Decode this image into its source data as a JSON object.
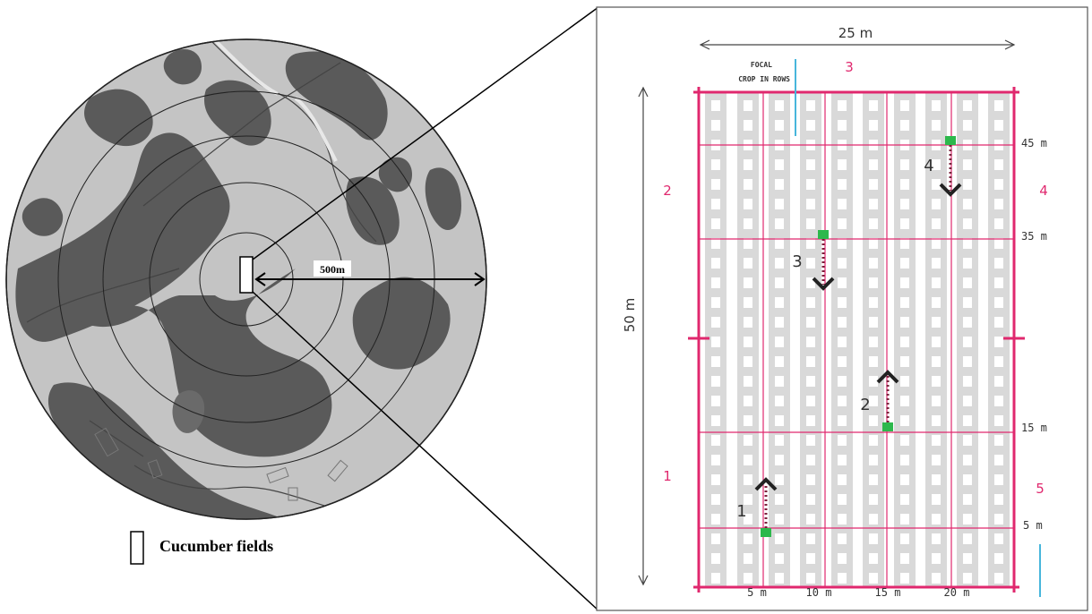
{
  "map": {
    "scale_label": "500m",
    "legend_label": "Cucumber fields"
  },
  "field": {
    "width_label": "25 m",
    "height_label": "50 m",
    "focal_label_line1": "FOCAL",
    "focal_label_line2": "CROP IN ROWS",
    "x_ticks": [
      "5 m",
      "10 m",
      "15 m",
      "20 m"
    ],
    "y_ticks": [
      "45 m",
      "35 m",
      "15 m",
      "5 m"
    ],
    "edge_numbers": {
      "top": "3",
      "left_upper": "2",
      "left_lower": "1",
      "right_upper": "4",
      "right_lower": "5"
    },
    "transects": [
      "1",
      "2",
      "3",
      "4"
    ]
  },
  "colors": {
    "grid_pink": "#e0286e",
    "focal_blue": "#47b6dc",
    "marker_green": "#2db84c",
    "dark_patch": "#5a5a5a",
    "light_patch": "#c8c8c8",
    "crop_row": "#d9d9d9"
  }
}
